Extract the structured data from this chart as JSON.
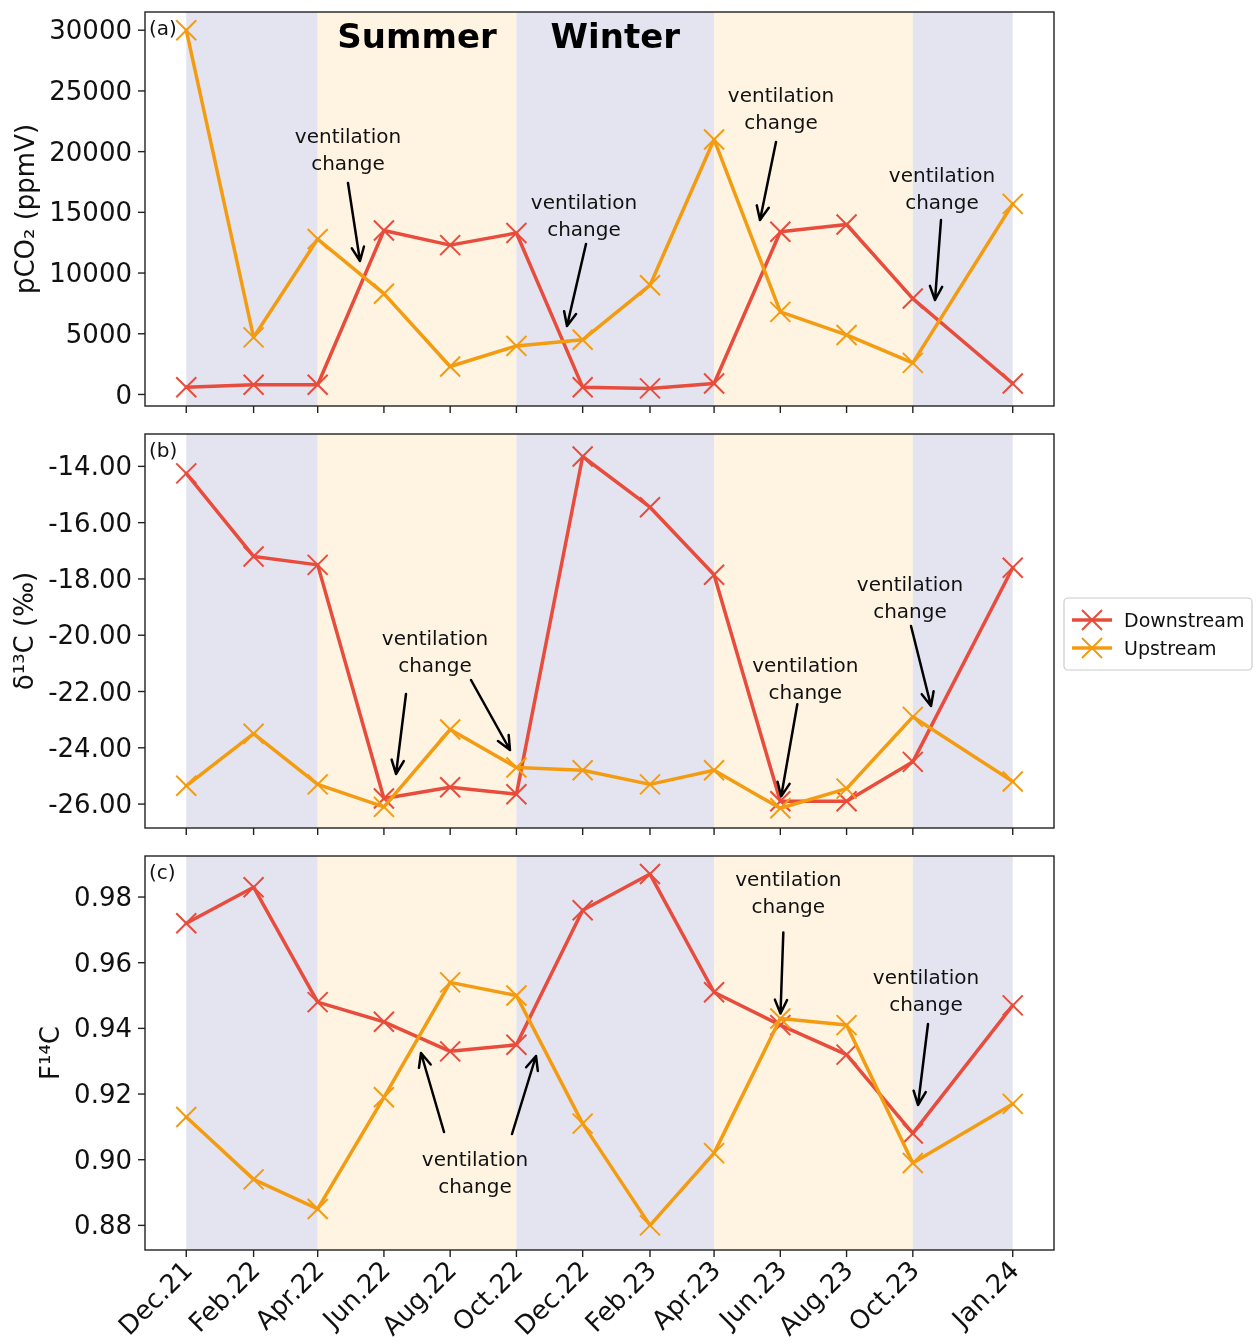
{
  "chart_data": [
    {
      "type": "line",
      "title": "(a)",
      "ylabel": "pCO₂ (ppmV)",
      "x": [
        "2021-12",
        "2022-02",
        "2022-04",
        "2022-06",
        "2022-08",
        "2022-10",
        "2022-12",
        "2023-02",
        "2023-04",
        "2023-06",
        "2023-08",
        "2023-10",
        "2024-01"
      ],
      "series": [
        {
          "color": "#e74c3c",
          "values": [
            600,
            800,
            800,
            13500,
            12300,
            13300,
            600,
            500,
            900,
            13400,
            14000,
            7900,
            900
          ]
        },
        {
          "color": "#f39c12",
          "values": [
            30000,
            4700,
            12800,
            8300,
            2300,
            4000,
            4500,
            9000,
            21000,
            6800,
            4900,
            2600,
            15700
          ]
        }
      ],
      "xlim": [
        "2021-10-24",
        "2024-02-08"
      ],
      "xticks": [
        {
          "value": "2021-12",
          "label": null
        },
        {
          "value": "2022-02",
          "label": null
        },
        {
          "value": "2022-04",
          "label": null
        },
        {
          "value": "2022-06",
          "label": null
        },
        {
          "value": "2022-08",
          "label": null
        },
        {
          "value": "2022-10",
          "label": null
        },
        {
          "value": "2022-12",
          "label": null
        },
        {
          "value": "2023-02",
          "label": null
        },
        {
          "value": "2023-04",
          "label": null
        },
        {
          "value": "2023-06",
          "label": null
        },
        {
          "value": "2023-08",
          "label": null
        },
        {
          "value": "2023-10",
          "label": null
        },
        {
          "value": "2024-01",
          "label": null
        }
      ],
      "ylim": [
        -950,
        31500
      ],
      "yticks": [
        0,
        5000,
        10000,
        15000,
        20000,
        25000,
        30000
      ],
      "tick_labels": "y",
      "marker": "cross",
      "bands": [
        {
          "axis": "x",
          "from": "2021-12",
          "to": "2022-04",
          "color": "#e4e4f0"
        },
        {
          "axis": "x",
          "from": "2022-04",
          "to": "2022-10",
          "color": "#fff3e1",
          "label": "Summer"
        },
        {
          "axis": "x",
          "from": "2022-10",
          "to": "2023-04",
          "color": "#e4e4f0",
          "label": "Winter"
        },
        {
          "axis": "x",
          "from": "2023-04",
          "to": "2023-10",
          "color": "#fff3e1"
        },
        {
          "axis": "x",
          "from": "2023-10",
          "to": "2024-01",
          "color": "#e4e4f0"
        }
      ],
      "annotations": [
        "ventilation change",
        "ventilation change",
        "ventilation change",
        "ventilation change"
      ]
    },
    {
      "type": "line",
      "title": "(b)",
      "ylabel": "δ¹³C (‰)",
      "x": [
        "2021-12",
        "2022-02",
        "2022-04",
        "2022-06",
        "2022-08",
        "2022-10",
        "2022-12",
        "2023-02",
        "2023-04",
        "2023-06",
        "2023-08",
        "2023-10",
        "2024-01"
      ],
      "series": [
        {
          "name": "Downstream",
          "color": "#e74c3c",
          "values": [
            -14.25,
            -17.2,
            -17.5,
            -25.8,
            -25.4,
            -25.65,
            -13.65,
            -15.45,
            -17.85,
            -25.9,
            -25.9,
            -24.5,
            -17.6
          ]
        },
        {
          "name": "Upstream",
          "color": "#f39c12",
          "values": [
            -25.35,
            -23.5,
            -25.3,
            -26.1,
            -23.35,
            -24.7,
            -24.8,
            -25.3,
            -24.8,
            -26.15,
            -25.45,
            -22.9,
            -25.2
          ]
        }
      ],
      "xlim": [
        "2021-10-24",
        "2024-02-08"
      ],
      "xticks": [
        {
          "value": "2021-12",
          "label": null
        },
        {
          "value": "2022-02",
          "label": null
        },
        {
          "value": "2022-04",
          "label": null
        },
        {
          "value": "2022-06",
          "label": null
        },
        {
          "value": "2022-08",
          "label": null
        },
        {
          "value": "2022-10",
          "label": null
        },
        {
          "value": "2022-12",
          "label": null
        },
        {
          "value": "2023-02",
          "label": null
        },
        {
          "value": "2023-04",
          "label": null
        },
        {
          "value": "2023-06",
          "label": null
        },
        {
          "value": "2023-08",
          "label": null
        },
        {
          "value": "2023-10",
          "label": null
        },
        {
          "value": "2024-01",
          "label": null
        }
      ],
      "ylim": [
        -26.85,
        -12.85
      ],
      "yticks": [
        {
          "value": -26,
          "label": "-26.00"
        },
        {
          "value": -24,
          "label": "-24.00"
        },
        {
          "value": -22,
          "label": "-22.00"
        },
        {
          "value": -20,
          "label": "-20.00"
        },
        {
          "value": -18,
          "label": "-18.00"
        },
        {
          "value": -16,
          "label": "-16.00"
        },
        {
          "value": -14,
          "label": "-14.00"
        }
      ],
      "tick_labels": "y",
      "marker": "cross",
      "legend": "right",
      "bands": [
        {
          "axis": "x",
          "from": "2021-12",
          "to": "2022-04",
          "color": "#e4e4f0"
        },
        {
          "axis": "x",
          "from": "2022-04",
          "to": "2022-10",
          "color": "#fff3e1"
        },
        {
          "axis": "x",
          "from": "2022-10",
          "to": "2023-04",
          "color": "#e4e4f0"
        },
        {
          "axis": "x",
          "from": "2023-04",
          "to": "2023-10",
          "color": "#fff3e1"
        },
        {
          "axis": "x",
          "from": "2023-10",
          "to": "2024-01",
          "color": "#e4e4f0"
        }
      ],
      "annotations": [
        "ventilation change",
        {
          "text": "ventilation change",
          "x": "2023-06",
          "y": -25.9
        },
        "ventilation change"
      ]
    },
    {
      "type": "line",
      "title": "(c)",
      "ylabel": "F¹⁴C",
      "x": [
        "2021-12",
        "2022-02",
        "2022-04",
        "2022-06",
        "2022-08",
        "2022-10",
        "2022-12",
        "2023-02",
        "2023-04",
        "2023-06",
        "2023-08",
        "2023-10",
        "2024-01"
      ],
      "series": [
        {
          "color": "#e74c3c",
          "values": [
            0.972,
            0.983,
            0.948,
            0.942,
            0.933,
            0.935,
            0.976,
            0.987,
            0.951,
            0.941,
            0.932,
            0.908,
            0.947
          ]
        },
        {
          "color": "#f39c12",
          "values": [
            0.913,
            0.894,
            0.885,
            0.919,
            0.954,
            0.95,
            0.911,
            0.88,
            0.902,
            0.943,
            0.941,
            0.899,
            0.917
          ]
        }
      ],
      "xlim": [
        "2021-10-24",
        "2024-02-08"
      ],
      "xticks": [
        {
          "value": "2021-12",
          "label": "Dec.21"
        },
        {
          "value": "2022-02",
          "label": "Feb.22"
        },
        {
          "value": "2022-04",
          "label": "Apr.22"
        },
        {
          "value": "2022-06",
          "label": "Jun.22"
        },
        {
          "value": "2022-08",
          "label": "Aug.22"
        },
        {
          "value": "2022-10",
          "label": "Oct.22"
        },
        {
          "value": "2022-12",
          "label": "Dec.22"
        },
        {
          "value": "2023-02",
          "label": "Feb.23"
        },
        {
          "value": "2023-04",
          "label": "Apr.23"
        },
        {
          "value": "2023-06",
          "label": "Jun.23"
        },
        {
          "value": "2023-08",
          "label": "Aug.23"
        },
        {
          "value": "2023-10",
          "label": "Oct.23"
        },
        {
          "value": "2024-01",
          "label": "Jan.24"
        }
      ],
      "ylim": [
        0.8725,
        0.9925
      ],
      "yticks": [
        0.88,
        {
          "value": 0.9,
          "label": "0.90"
        },
        0.92,
        0.94,
        0.96,
        0.98
      ],
      "marker": "cross",
      "bands": [
        {
          "axis": "x",
          "from": "2021-12",
          "to": "2022-04",
          "color": "#e4e4f0"
        },
        {
          "axis": "x",
          "from": "2022-04",
          "to": "2022-10",
          "color": "#fff3e1"
        },
        {
          "axis": "x",
          "from": "2022-10",
          "to": "2023-04",
          "color": "#e4e4f0"
        },
        {
          "axis": "x",
          "from": "2023-04",
          "to": "2023-10",
          "color": "#fff3e1"
        },
        {
          "axis": "x",
          "from": "2023-10",
          "to": "2024-01",
          "color": "#e4e4f0"
        }
      ],
      "annotations": [
        "ventilation change",
        {
          "text": "ventilation change",
          "x": "2023-06",
          "y": 0.943
        },
        "ventilation change"
      ]
    }
  ]
}
